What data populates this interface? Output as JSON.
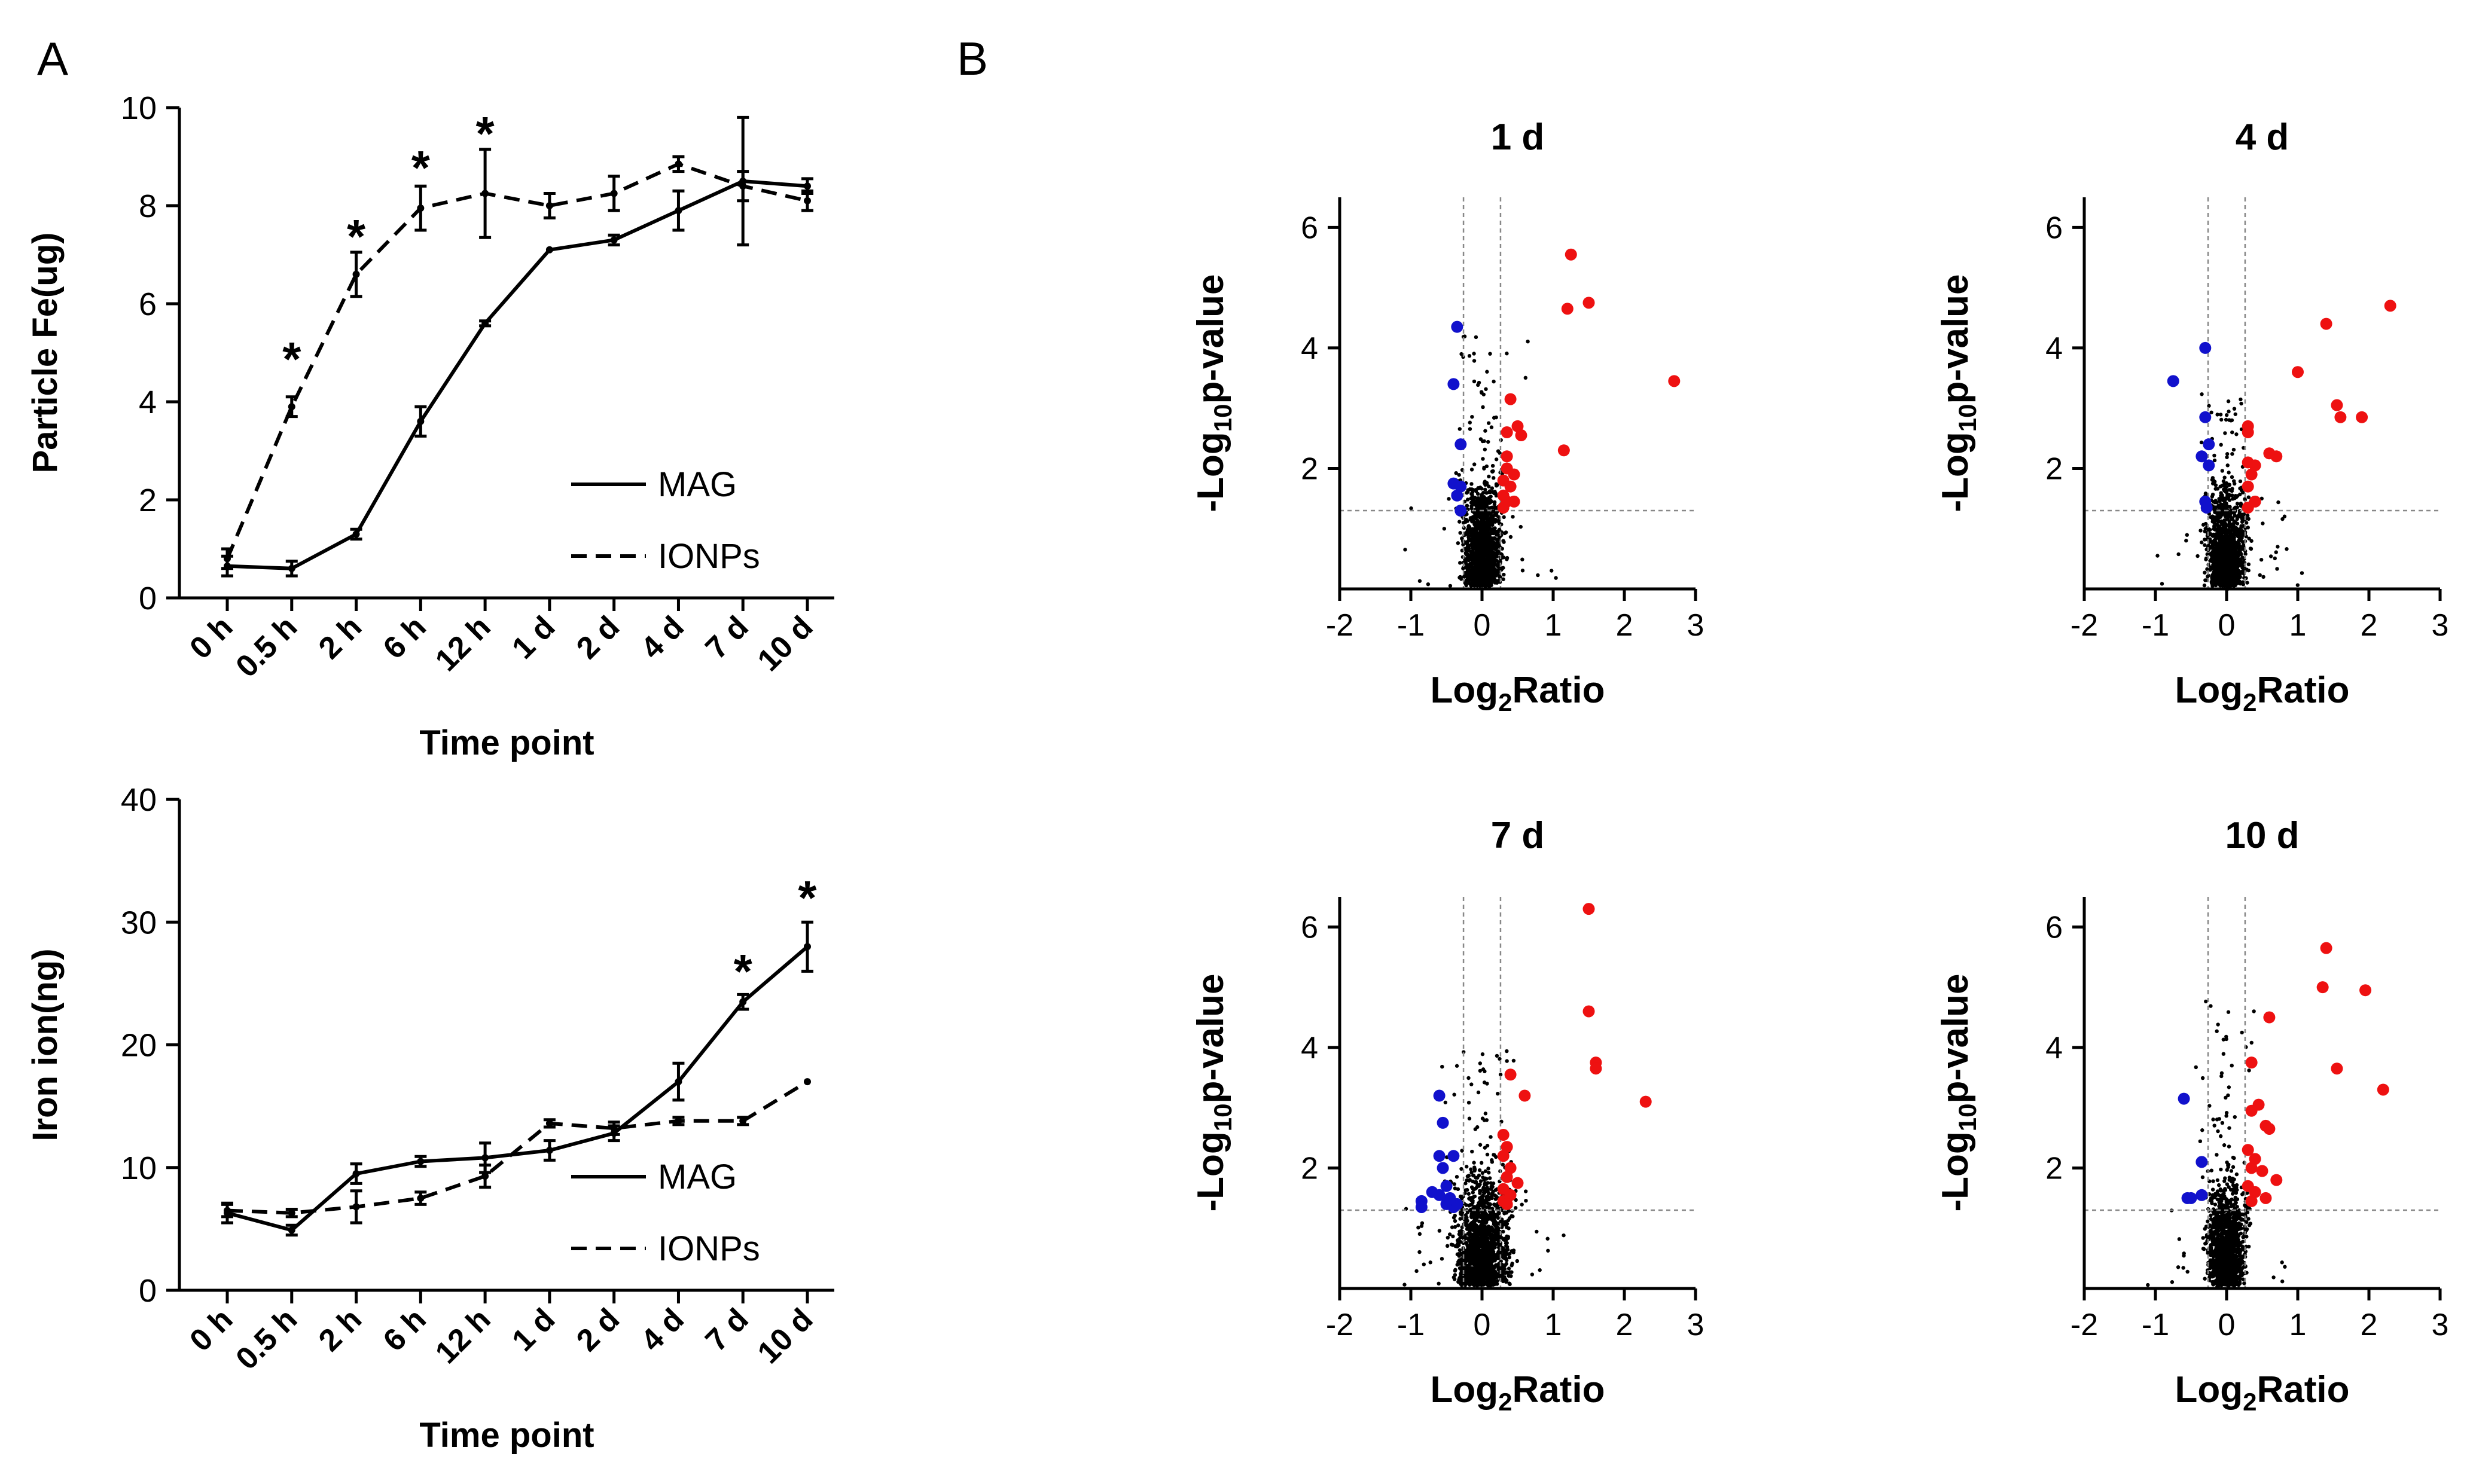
{
  "panels": {
    "a_label": "A",
    "b_label": "B"
  },
  "colors": {
    "up": "#ee1111",
    "down": "#1111cc",
    "background_points": "#000000",
    "axis": "#000000",
    "threshold": "#888888"
  },
  "chart_data": [
    {
      "id": "fe",
      "type": "line",
      "title": "",
      "xlabel": "Time point",
      "ylabel": "Particle Fe(ug)",
      "categories": [
        "0 h",
        "0.5 h",
        "2 h",
        "6 h",
        "12 h",
        "1 d",
        "2 d",
        "4 d",
        "7 d",
        "10 d"
      ],
      "ylim": [
        0,
        10
      ],
      "yticks": [
        0,
        2,
        4,
        6,
        8,
        10
      ],
      "legend_position": "bottom-right",
      "series": [
        {
          "name": "MAG",
          "style": "solid",
          "values": [
            0.65,
            0.6,
            1.3,
            3.6,
            5.6,
            7.1,
            7.3,
            7.9,
            8.5,
            8.4
          ],
          "errors": [
            0.2,
            0.15,
            0.1,
            0.3,
            0.05,
            0.0,
            0.1,
            0.4,
            1.3,
            0.15
          ]
        },
        {
          "name": "IONPs",
          "style": "dashed",
          "values": [
            0.8,
            3.9,
            6.6,
            7.95,
            8.25,
            8.0,
            8.25,
            8.85,
            8.4,
            8.1
          ],
          "errors": [
            0.2,
            0.2,
            0.45,
            0.45,
            0.9,
            0.25,
            0.35,
            0.15,
            0.3,
            0.2
          ]
        }
      ],
      "significance": [
        {
          "category": "0.5 h",
          "label": "*",
          "y": 5.0
        },
        {
          "category": "2 h",
          "label": "*",
          "y": 7.5
        },
        {
          "category": "6 h",
          "label": "*",
          "y": 8.9
        },
        {
          "category": "12 h",
          "label": "*",
          "y": 9.6
        }
      ]
    },
    {
      "id": "ion",
      "type": "line",
      "title": "",
      "xlabel": "Time point",
      "ylabel": "Iron ion(ng)",
      "categories": [
        "0 h",
        "0.5 h",
        "2 h",
        "6 h",
        "12 h",
        "1 d",
        "2 d",
        "4 d",
        "7 d",
        "10 d"
      ],
      "ylim": [
        0,
        40
      ],
      "yticks": [
        0,
        10,
        20,
        30,
        40
      ],
      "legend_position": "bottom-right",
      "series": [
        {
          "name": "MAG",
          "style": "solid",
          "values": [
            6.3,
            4.9,
            9.5,
            10.5,
            10.8,
            11.4,
            12.8,
            17.0,
            23.5,
            28.0
          ],
          "errors": [
            0.8,
            0.4,
            0.8,
            0.4,
            1.2,
            0.8,
            0.6,
            1.5,
            0.6,
            2.0
          ]
        },
        {
          "name": "IONPs",
          "style": "dashed",
          "values": [
            6.5,
            6.3,
            6.8,
            7.5,
            9.3,
            13.6,
            13.2,
            13.8,
            13.8,
            17.0
          ],
          "errors": [
            0.5,
            0.3,
            1.3,
            0.5,
            0.9,
            0.3,
            0.5,
            0.3,
            0.3,
            0.0
          ]
        }
      ],
      "significance": [
        {
          "category": "7 d",
          "label": "*",
          "y": 26.5
        },
        {
          "category": "10 d",
          "label": "*",
          "y": 32.5
        }
      ]
    },
    {
      "id": "v1",
      "type": "scatter",
      "title": "1 d",
      "xlabel": "Log2Ratio",
      "ylabel": "-Log10p-value",
      "xlim": [
        -2,
        3
      ],
      "ylim": [
        0,
        6.5
      ],
      "xticks": [
        -2,
        -1,
        0,
        1,
        2,
        3
      ],
      "yticks": [
        2,
        4,
        6
      ],
      "thresholds": {
        "x": [
          -0.26,
          0.26
        ],
        "y": 1.3
      },
      "up": [
        [
          1.25,
          5.55
        ],
        [
          1.5,
          4.75
        ],
        [
          1.2,
          4.65
        ],
        [
          2.7,
          3.45
        ],
        [
          0.4,
          3.15
        ],
        [
          0.5,
          2.7
        ],
        [
          0.55,
          2.55
        ],
        [
          0.35,
          2.6
        ],
        [
          0.35,
          2.2
        ],
        [
          1.15,
          2.3
        ],
        [
          0.35,
          2.0
        ],
        [
          0.45,
          1.9
        ],
        [
          0.3,
          1.8
        ],
        [
          0.4,
          1.7
        ],
        [
          0.3,
          1.55
        ],
        [
          0.45,
          1.45
        ],
        [
          0.35,
          1.45
        ],
        [
          0.3,
          1.35
        ]
      ],
      "down": [
        [
          -0.35,
          4.35
        ],
        [
          -0.4,
          3.4
        ],
        [
          -0.3,
          2.4
        ],
        [
          -0.4,
          1.75
        ],
        [
          -0.3,
          1.7
        ],
        [
          -0.35,
          1.55
        ],
        [
          -0.3,
          1.3
        ]
      ],
      "cloud": {
        "n": 1400,
        "spread_x": 0.11,
        "spread_y": 0.75,
        "max_y": 4.2,
        "seed": 11
      }
    },
    {
      "id": "v4",
      "type": "scatter",
      "title": "4 d",
      "xlabel": "Log2Ratio",
      "ylabel": "-Log10p-value",
      "xlim": [
        -2,
        3
      ],
      "ylim": [
        0,
        6.5
      ],
      "xticks": [
        -2,
        -1,
        0,
        1,
        2,
        3
      ],
      "yticks": [
        2,
        4,
        6
      ],
      "thresholds": {
        "x": [
          -0.26,
          0.26
        ],
        "y": 1.3
      },
      "up": [
        [
          2.3,
          4.7
        ],
        [
          1.4,
          4.4
        ],
        [
          1.0,
          3.6
        ],
        [
          1.55,
          3.05
        ],
        [
          1.6,
          2.85
        ],
        [
          1.9,
          2.85
        ],
        [
          0.3,
          2.7
        ],
        [
          0.3,
          2.6
        ],
        [
          0.6,
          2.25
        ],
        [
          0.7,
          2.2
        ],
        [
          0.3,
          2.1
        ],
        [
          0.4,
          2.05
        ],
        [
          0.35,
          1.9
        ],
        [
          0.3,
          1.7
        ],
        [
          0.4,
          1.45
        ],
        [
          0.3,
          1.35
        ]
      ],
      "down": [
        [
          -0.3,
          4.0
        ],
        [
          -0.75,
          3.45
        ],
        [
          -0.3,
          2.85
        ],
        [
          -0.25,
          2.4
        ],
        [
          -0.35,
          2.2
        ],
        [
          -0.25,
          2.05
        ],
        [
          -0.3,
          1.45
        ],
        [
          -0.28,
          1.35
        ]
      ],
      "cloud": {
        "n": 1400,
        "spread_x": 0.11,
        "spread_y": 0.7,
        "max_y": 3.3,
        "seed": 23
      }
    },
    {
      "id": "v7",
      "type": "scatter",
      "title": "7 d",
      "xlabel": "Log2Ratio",
      "ylabel": "-Log10p-value",
      "xlim": [
        -2,
        3
      ],
      "ylim": [
        0,
        6.5
      ],
      "xticks": [
        -2,
        -1,
        0,
        1,
        2,
        3
      ],
      "yticks": [
        2,
        4,
        6
      ],
      "thresholds": {
        "x": [
          -0.26,
          0.26
        ],
        "y": 1.3
      },
      "up": [
        [
          1.5,
          6.3
        ],
        [
          1.5,
          4.6
        ],
        [
          1.6,
          3.75
        ],
        [
          1.6,
          3.65
        ],
        [
          0.4,
          3.55
        ],
        [
          0.6,
          3.2
        ],
        [
          2.3,
          3.1
        ],
        [
          0.3,
          2.55
        ],
        [
          0.35,
          2.35
        ],
        [
          0.3,
          2.2
        ],
        [
          0.4,
          2.0
        ],
        [
          0.35,
          1.85
        ],
        [
          0.5,
          1.75
        ],
        [
          0.3,
          1.65
        ],
        [
          0.4,
          1.55
        ],
        [
          0.3,
          1.45
        ],
        [
          0.35,
          1.4
        ]
      ],
      "down": [
        [
          -0.6,
          3.2
        ],
        [
          -0.55,
          2.75
        ],
        [
          -0.4,
          2.2
        ],
        [
          -0.6,
          2.2
        ],
        [
          -0.55,
          2.0
        ],
        [
          -0.5,
          1.7
        ],
        [
          -0.6,
          1.55
        ],
        [
          -0.85,
          1.45
        ],
        [
          -0.85,
          1.35
        ],
        [
          -0.5,
          1.4
        ],
        [
          -0.4,
          1.35
        ],
        [
          -0.35,
          1.4
        ],
        [
          -0.45,
          1.5
        ],
        [
          -0.7,
          1.6
        ]
      ],
      "cloud": {
        "n": 1600,
        "spread_x": 0.15,
        "spread_y": 0.8,
        "max_y": 4.0,
        "seed": 37
      }
    },
    {
      "id": "v10",
      "type": "scatter",
      "title": "10 d",
      "xlabel": "Log2Ratio",
      "ylabel": "-Log10p-value",
      "xlim": [
        -2,
        3
      ],
      "ylim": [
        0,
        6.5
      ],
      "xticks": [
        -2,
        -1,
        0,
        1,
        2,
        3
      ],
      "yticks": [
        2,
        4,
        6
      ],
      "thresholds": {
        "x": [
          -0.26,
          0.26
        ],
        "y": 1.3
      },
      "up": [
        [
          1.4,
          5.65
        ],
        [
          1.35,
          5.0
        ],
        [
          1.95,
          4.95
        ],
        [
          0.6,
          4.5
        ],
        [
          0.35,
          3.75
        ],
        [
          1.55,
          3.65
        ],
        [
          2.2,
          3.3
        ],
        [
          0.45,
          3.05
        ],
        [
          0.35,
          2.95
        ],
        [
          0.55,
          2.7
        ],
        [
          0.6,
          2.65
        ],
        [
          0.3,
          2.3
        ],
        [
          0.4,
          2.15
        ],
        [
          0.35,
          2.0
        ],
        [
          0.5,
          1.95
        ],
        [
          0.7,
          1.8
        ],
        [
          0.3,
          1.7
        ],
        [
          0.4,
          1.6
        ],
        [
          0.55,
          1.5
        ],
        [
          0.35,
          1.45
        ]
      ],
      "down": [
        [
          -0.6,
          3.15
        ],
        [
          -0.35,
          2.1
        ],
        [
          -0.55,
          1.5
        ],
        [
          -0.5,
          1.5
        ],
        [
          -0.35,
          1.55
        ]
      ],
      "cloud": {
        "n": 1400,
        "spread_x": 0.11,
        "spread_y": 0.75,
        "max_y": 4.8,
        "seed": 53
      }
    }
  ]
}
